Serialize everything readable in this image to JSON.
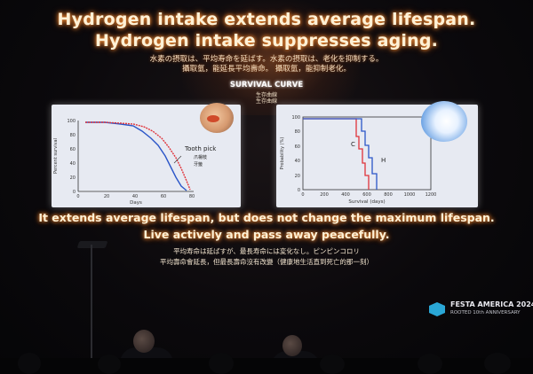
{
  "slide": {
    "title_line1": "Hydrogen intake extends average lifespan.",
    "title_line2": "Hydrogen intake suppresses aging.",
    "subtitle_ja": "水素の摂取は、平均寿命を延ばす。水素の摂取は、老化を抑制する。",
    "subtitle_zh": "攝取氫，能延長平均壽命。 攝取氫，能抑制老化。",
    "survival_title": "SURVIVAL CURVE",
    "survival_sub_ja": "生存曲線",
    "survival_sub_zh": "生存曲線",
    "conclusion_line1": "It extends average lifespan, but does not change the maximum lifespan.",
    "conclusion_line2": "Live actively and pass away peacefully.",
    "footnote_ja": "平均寿命は延ばすが、最長寿命には変化なし。ピンピンコロリ",
    "footnote_zh": "平均壽命會延長，但最長壽命沒有改變（健康地生活直到死亡的那一刻）"
  },
  "chart_left": {
    "ylabel": "Percent survival",
    "xlabel": "Days",
    "yticks": [
      "0",
      "20",
      "40",
      "60",
      "80",
      "100"
    ],
    "xticks": [
      "0",
      "20",
      "40",
      "60",
      "80"
    ],
    "annotation_en": "Tooth pick",
    "annotation_zh1": "爪楊枝",
    "annotation_zh2": "牙籤"
  },
  "chart_right": {
    "ylabel": "Probability (%)",
    "xlabel": "Survival (days)",
    "yticks": [
      "0",
      "20",
      "40",
      "60",
      "80",
      "100"
    ],
    "xticks": [
      "0",
      "200",
      "400",
      "600",
      "800",
      "1000",
      "1200"
    ],
    "label_c": "C",
    "label_h": "H"
  },
  "branding": {
    "logo_line1": "FESTA AMERICA 2024",
    "logo_line2": "ROOTED 10th ANNIVERSARY"
  },
  "colors": {
    "title_glow": "#ff9a3c",
    "series_red": "#e0333a",
    "series_blue": "#2b56c8"
  }
}
